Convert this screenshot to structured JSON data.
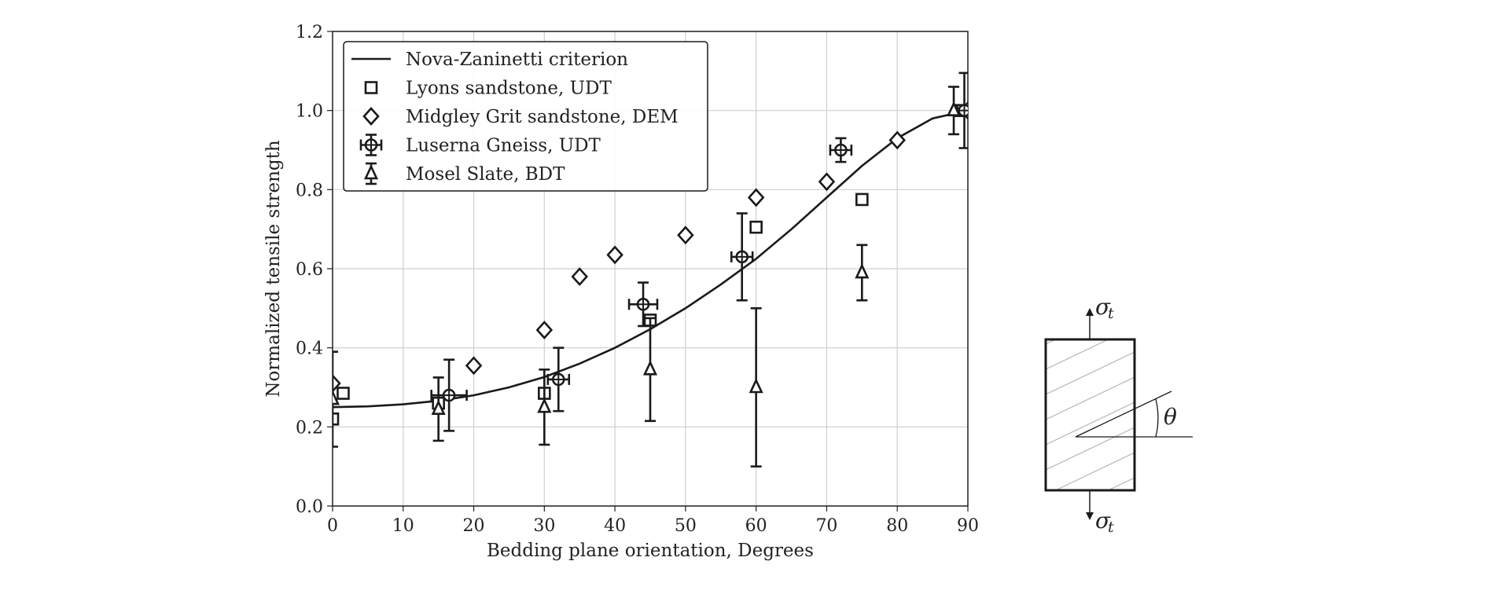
{
  "chart_data": {
    "type": "scatter",
    "xlabel": "Bedding plane orientation, Degrees",
    "ylabel": "Normalized tensile strength",
    "xlim": [
      0,
      90
    ],
    "ylim": [
      0.0,
      1.2
    ],
    "xticks": [
      "0",
      "10",
      "20",
      "30",
      "40",
      "50",
      "60",
      "70",
      "80",
      "90"
    ],
    "yticks": [
      "0.0",
      "0.2",
      "0.4",
      "0.6",
      "0.8",
      "1.0",
      "1.2"
    ],
    "grid": true,
    "legend_position": "top-left",
    "series": [
      {
        "name": "Nova-Zaninetti criterion",
        "kind": "line",
        "x": [
          0,
          5,
          10,
          15,
          20,
          25,
          30,
          35,
          40,
          45,
          50,
          55,
          60,
          65,
          70,
          75,
          80,
          85,
          90
        ],
        "y": [
          0.25,
          0.252,
          0.257,
          0.266,
          0.28,
          0.3,
          0.326,
          0.36,
          0.4,
          0.447,
          0.5,
          0.56,
          0.625,
          0.7,
          0.78,
          0.86,
          0.93,
          0.98,
          1.0
        ]
      },
      {
        "name": "Lyons sandstone, UDT",
        "kind": "square",
        "x": [
          0,
          1.5,
          15,
          30,
          45,
          60,
          75,
          89
        ],
        "y": [
          0.22,
          0.285,
          0.26,
          0.285,
          0.47,
          0.705,
          0.775,
          1.0
        ]
      },
      {
        "name": "Midgley Grit sandstone, DEM",
        "kind": "diamond",
        "x": [
          0,
          20,
          30,
          35,
          40,
          50,
          60,
          70,
          80,
          90
        ],
        "y": [
          0.31,
          0.355,
          0.445,
          0.58,
          0.635,
          0.685,
          0.78,
          0.82,
          0.925,
          1.0
        ]
      },
      {
        "name": "Luserna Gneiss, UDT",
        "kind": "circle-cross",
        "x": [
          16.5,
          32,
          44,
          58,
          72,
          89.5
        ],
        "y": [
          0.28,
          0.32,
          0.51,
          0.63,
          0.9,
          1.0
        ],
        "xerr": [
          2.5,
          1.5,
          2,
          1.5,
          1.5,
          1
        ],
        "yerr": [
          0.09,
          0.08,
          0.055,
          0.11,
          0.03,
          0.095
        ]
      },
      {
        "name": "Mosel Slate, BDT",
        "kind": "triangle",
        "x": [
          0,
          15,
          30,
          45,
          60,
          75,
          88
        ],
        "y": [
          0.27,
          0.245,
          0.25,
          0.345,
          0.3,
          0.59,
          1.0
        ],
        "yerr": [
          0.12,
          0.08,
          0.095,
          0.13,
          0.2,
          0.07,
          0.06
        ]
      }
    ]
  },
  "diagram": {
    "stress_label": "σ",
    "stress_subscript": "t",
    "angle_label": "θ"
  }
}
